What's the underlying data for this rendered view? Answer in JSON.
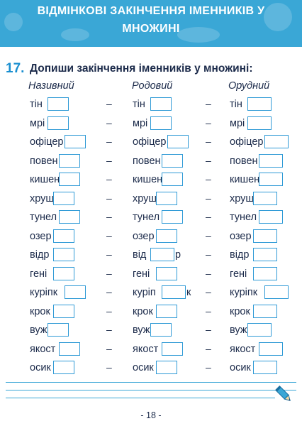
{
  "header": {
    "title_line1": "ВІДМІНКОВІ ЗАКІНЧЕННЯ ІМЕННИКІВ У",
    "title_line2": "МНОЖИНІ"
  },
  "task": {
    "number": "17.",
    "instruction": "Допиши закінчення іменників у множині:"
  },
  "columns": [
    "Називний",
    "Родовий",
    "Орудний"
  ],
  "separator": "–",
  "rows": [
    {
      "nom": "тін",
      "gen": [
        "тін",
        ""
      ],
      "ins": "тін"
    },
    {
      "nom": "мрі",
      "gen": [
        "мрі",
        ""
      ],
      "ins": "мрі"
    },
    {
      "nom": "офіцер",
      "gen": [
        "офіцер",
        ""
      ],
      "ins": "офіцер"
    },
    {
      "nom": "повен",
      "gen": [
        "повен",
        ""
      ],
      "ins": "повен"
    },
    {
      "nom": "кишен",
      "gen": [
        "кишен",
        ""
      ],
      "ins": "кишен"
    },
    {
      "nom": "хрущ",
      "gen": [
        "хрущ",
        ""
      ],
      "ins": "хрущ"
    },
    {
      "nom": "тунел",
      "gen": [
        "тунел",
        ""
      ],
      "ins": "тунел"
    },
    {
      "nom": "озер",
      "gen": [
        "озер",
        ""
      ],
      "ins": "озер"
    },
    {
      "nom": "відр",
      "gen": [
        "від",
        "р"
      ],
      "ins": "відр"
    },
    {
      "nom": "гені",
      "gen": [
        "гені",
        ""
      ],
      "ins": "гені"
    },
    {
      "nom": "куріпк",
      "gen": [
        "куріп",
        "к"
      ],
      "ins": "куріпк"
    },
    {
      "nom": "крок",
      "gen": [
        "крок",
        ""
      ],
      "ins": "крок"
    },
    {
      "nom": "вуж",
      "gen": [
        "вуж",
        ""
      ],
      "ins": "вуж"
    },
    {
      "nom": "якост",
      "gen": [
        "якост",
        ""
      ],
      "ins": "якост"
    },
    {
      "nom": "осик",
      "gen": [
        "осик",
        ""
      ],
      "ins": "осик"
    }
  ],
  "footer": {
    "page_number": "- 18 -",
    "pencil_icon": "pencil-icon"
  }
}
